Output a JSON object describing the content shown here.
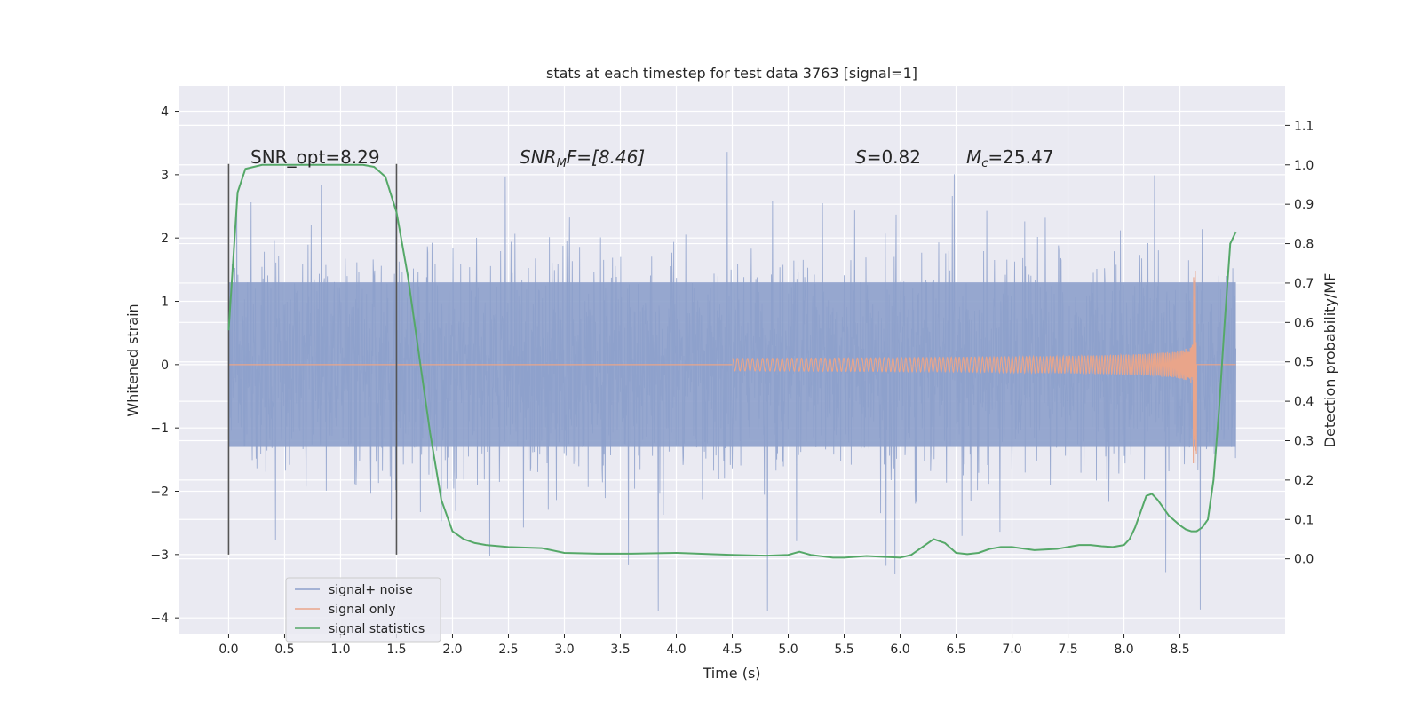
{
  "chart_data": {
    "type": "line",
    "title": "stats at each timestep for test data 3763 [signal=1]",
    "xlabel": "Time (s)",
    "ylabel": "Whitened strain",
    "y2label": "Detection probability/MF",
    "xlim": [
      -0.44,
      9.44
    ],
    "ylim": [
      -4.25,
      4.4
    ],
    "y2lim": [
      -0.19,
      1.2
    ],
    "xticks": [
      "0.0",
      "0.5",
      "1.0",
      "1.5",
      "2.0",
      "2.5",
      "3.0",
      "3.5",
      "4.0",
      "4.5",
      "5.0",
      "5.5",
      "6.0",
      "6.5",
      "7.0",
      "7.5",
      "8.0",
      "8.5"
    ],
    "yticks": [
      "−4",
      "−3",
      "−2",
      "−1",
      "0",
      "1",
      "2",
      "3",
      "4"
    ],
    "y2ticks": [
      "0.0",
      "0.1",
      "0.2",
      "0.3",
      "0.4",
      "0.5",
      "0.6",
      "0.7",
      "0.8",
      "0.9",
      "1.0",
      "1.1"
    ],
    "grid": true,
    "legend": {
      "placement": "lower-left"
    },
    "series": [
      {
        "name": "signal+ noise",
        "color": "#8da0cb",
        "axis": "left",
        "duration": [
          0.0,
          9.0
        ],
        "amplitude_typical": 1.3,
        "amplitude_peak": 4.0
      },
      {
        "name": "signal only",
        "color": "#e9a58a",
        "axis": "left",
        "merger_time": 8.65,
        "peak_amplitude": 1.6
      },
      {
        "name": "signal statistics",
        "color": "#55a868",
        "axis": "right",
        "x": [
          0.0,
          0.08,
          0.15,
          0.3,
          0.5,
          0.8,
          1.0,
          1.2,
          1.3,
          1.4,
          1.5,
          1.6,
          1.7,
          1.8,
          1.9,
          2.0,
          2.1,
          2.2,
          2.3,
          2.5,
          2.8,
          3.0,
          3.3,
          3.6,
          4.0,
          4.5,
          4.8,
          5.0,
          5.1,
          5.2,
          5.4,
          5.5,
          5.7,
          6.0,
          6.1,
          6.2,
          6.3,
          6.4,
          6.5,
          6.6,
          6.7,
          6.8,
          6.9,
          7.0,
          7.2,
          7.4,
          7.6,
          7.7,
          7.8,
          7.9,
          8.0,
          8.05,
          8.1,
          8.15,
          8.2,
          8.25,
          8.3,
          8.4,
          8.5,
          8.55,
          8.6,
          8.65,
          8.7,
          8.75,
          8.8,
          8.85,
          8.9,
          8.95,
          9.0
        ],
        "y": [
          0.58,
          0.93,
          0.99,
          1.0,
          1.0,
          1.0,
          1.0,
          1.0,
          0.995,
          0.97,
          0.88,
          0.72,
          0.52,
          0.32,
          0.15,
          0.07,
          0.05,
          0.04,
          0.035,
          0.03,
          0.027,
          0.015,
          0.013,
          0.013,
          0.015,
          0.01,
          0.008,
          0.01,
          0.018,
          0.01,
          0.003,
          0.003,
          0.007,
          0.003,
          0.01,
          0.03,
          0.05,
          0.04,
          0.015,
          0.012,
          0.015,
          0.025,
          0.03,
          0.03,
          0.022,
          0.025,
          0.035,
          0.035,
          0.032,
          0.03,
          0.035,
          0.05,
          0.08,
          0.12,
          0.16,
          0.165,
          0.15,
          0.11,
          0.085,
          0.075,
          0.07,
          0.07,
          0.08,
          0.1,
          0.2,
          0.38,
          0.6,
          0.8,
          0.83
        ]
      }
    ],
    "vlines": [
      0.0,
      1.5
    ],
    "annotations": {
      "snr_opt": "SNR_opt=8.29",
      "snr_mf_base": "SNR",
      "snr_mf_sub": "M",
      "snr_mf_rest": "F=[8.46]",
      "s_var": "S",
      "s_rest": "=0.82",
      "mc_base": "M",
      "mc_sub": "c",
      "mc_rest": "=25.47"
    }
  }
}
